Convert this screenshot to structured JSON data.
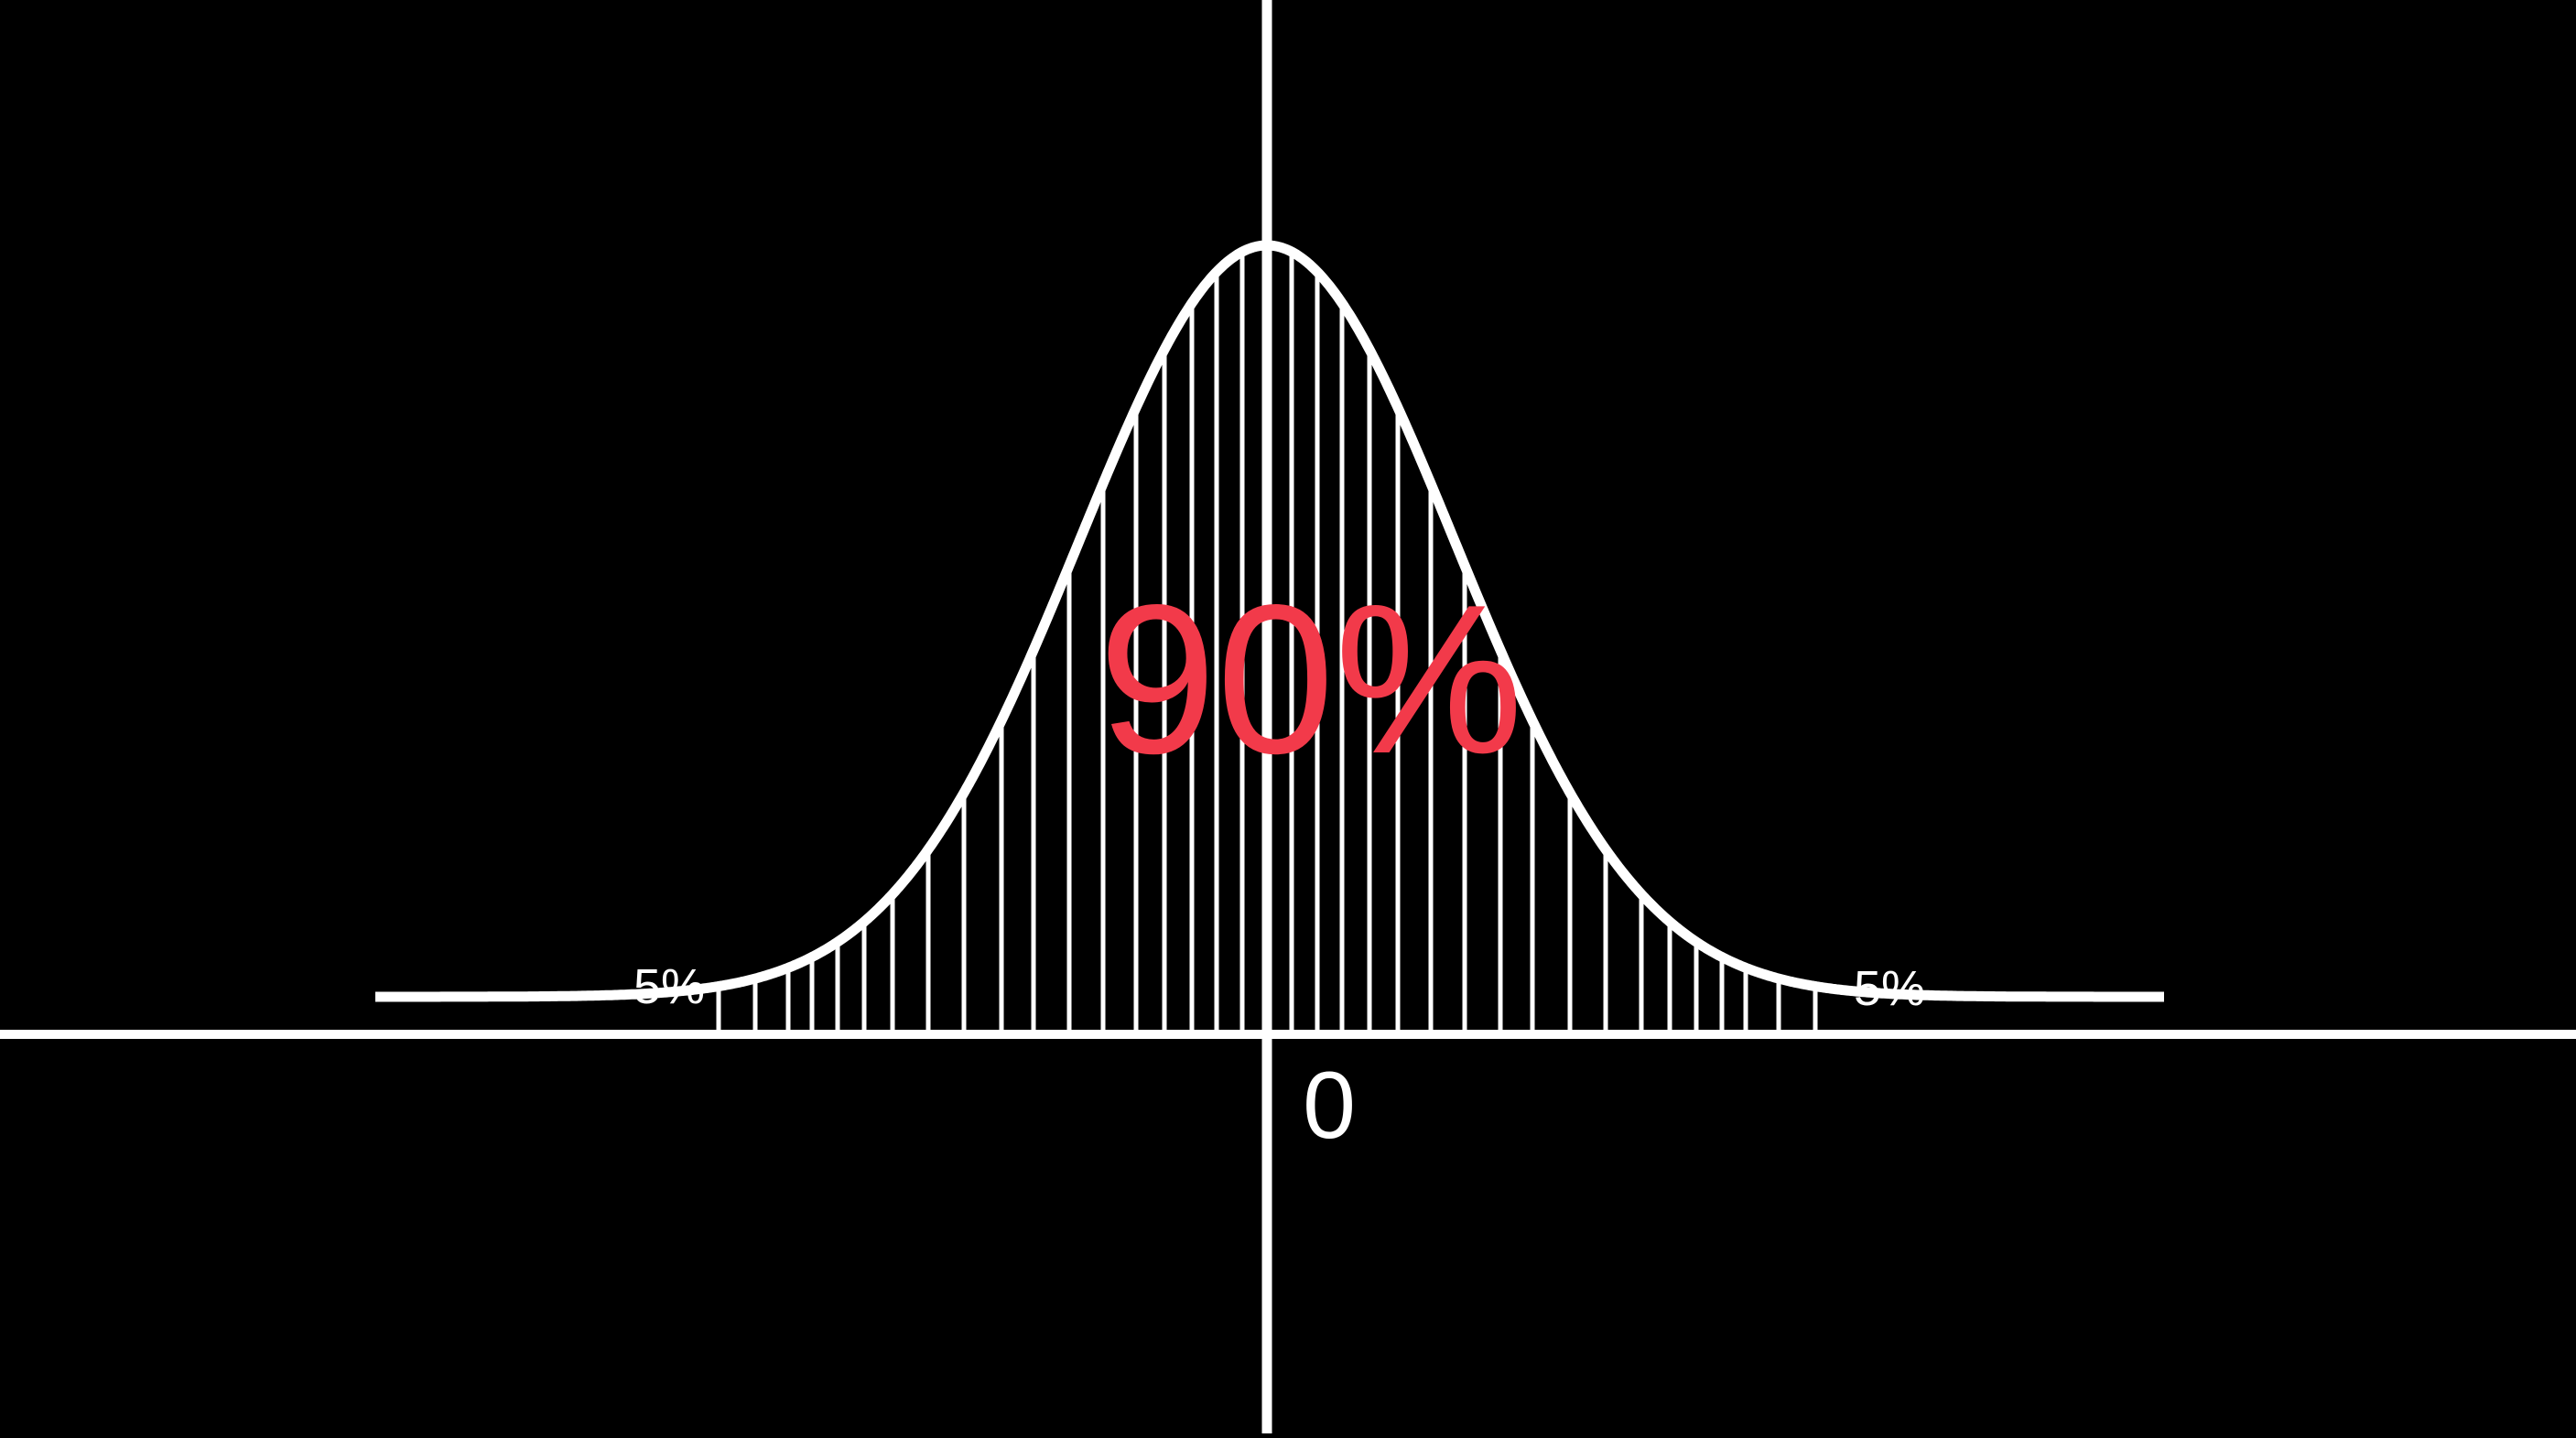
{
  "diagram": {
    "type": "normal-distribution",
    "center_value": 90,
    "tail_value": 5,
    "labels": {
      "center_percent": "90%",
      "left_tail_percent": "5%",
      "right_tail_percent": "5%",
      "origin": "0"
    },
    "colors": {
      "background": "#000000",
      "foreground": "#ffffff",
      "accent": "#f23a4a"
    }
  }
}
